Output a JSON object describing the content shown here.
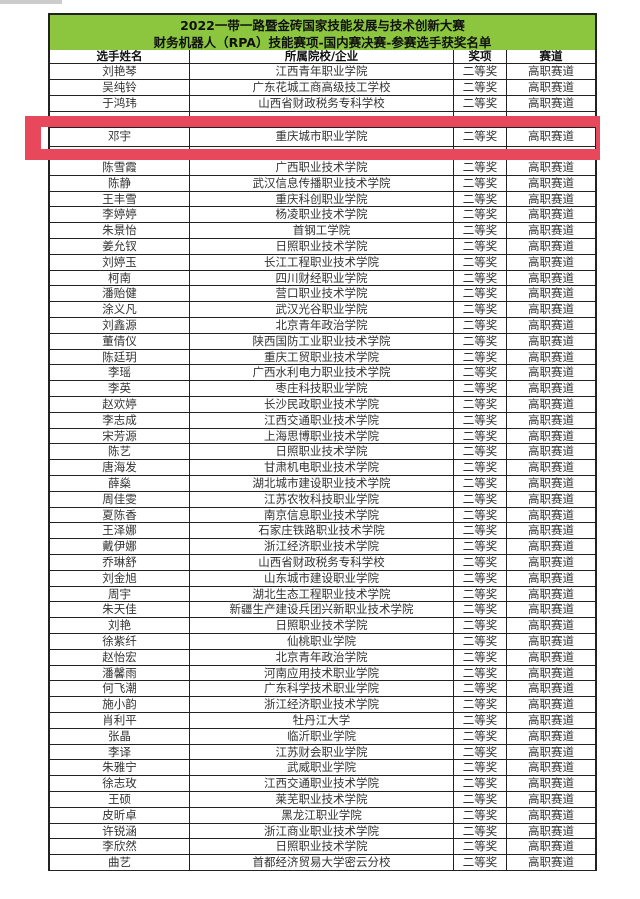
{
  "title": {
    "line1": "2022一带一路暨金砖国家技能发展与技术创新大赛",
    "line2": "财务机器人（RPA）技能赛项-国内赛决赛-参赛选手获奖名单"
  },
  "columns": [
    "选手姓名",
    "所属院校/企业",
    "奖项",
    "赛道"
  ],
  "colors": {
    "header_bg": "#8cc63f",
    "highlight": "#e8485b"
  },
  "top_rows": [
    [
      "刘艳琴",
      "江西青年职业学院",
      "二等奖",
      "高职赛道"
    ],
    [
      "吴纯铃",
      "广东花城工商高级技工学校",
      "二等奖",
      "高职赛道"
    ],
    [
      "于鸿玮",
      "山西省财政税务专科学校",
      "二等奖",
      "高职赛道"
    ]
  ],
  "highlighted_row": [
    "邓宇",
    "重庆城市职业学院",
    "二等奖",
    "高职赛道"
  ],
  "rows": [
    [
      "陈雪霞",
      "广西职业技术学院",
      "二等奖",
      "高职赛道"
    ],
    [
      "陈静",
      "武汉信息传播职业技术学院",
      "二等奖",
      "高职赛道"
    ],
    [
      "王丰雪",
      "重庆科创职业学院",
      "二等奖",
      "高职赛道"
    ],
    [
      "李婷婷",
      "杨凌职业技术学院",
      "二等奖",
      "高职赛道"
    ],
    [
      "朱景怡",
      "首钢工学院",
      "二等奖",
      "高职赛道"
    ],
    [
      "姜允钗",
      "日照职业技术学院",
      "二等奖",
      "高职赛道"
    ],
    [
      "刘婷玉",
      "长江工程职业技术学院",
      "二等奖",
      "高职赛道"
    ],
    [
      "柯南",
      "四川财经职业学院",
      "二等奖",
      "高职赛道"
    ],
    [
      "潘贻健",
      "营口职业技术学院",
      "二等奖",
      "高职赛道"
    ],
    [
      "涂义凡",
      "武汉光谷职业学院",
      "二等奖",
      "高职赛道"
    ],
    [
      "刘鑫源",
      "北京青年政治学院",
      "二等奖",
      "高职赛道"
    ],
    [
      "董倩仪",
      "陕西国防工业职业技术学院",
      "二等奖",
      "高职赛道"
    ],
    [
      "陈廷玥",
      "重庆工贸职业技术学院",
      "二等奖",
      "高职赛道"
    ],
    [
      "李瑶",
      "广西水利电力职业技术学院",
      "二等奖",
      "高职赛道"
    ],
    [
      "李英",
      "枣庄科技职业学院",
      "二等奖",
      "高职赛道"
    ],
    [
      "赵欢婷",
      "长沙民政职业技术学院",
      "二等奖",
      "高职赛道"
    ],
    [
      "李志成",
      "江西交通职业技术学院",
      "二等奖",
      "高职赛道"
    ],
    [
      "宋芳源",
      "上海思博职业技术学院",
      "二等奖",
      "高职赛道"
    ],
    [
      "陈艺",
      "日照职业技术学院",
      "二等奖",
      "高职赛道"
    ],
    [
      "唐海发",
      "甘肃机电职业技术学院",
      "二等奖",
      "高职赛道"
    ],
    [
      "薛燊",
      "湖北城市建设职业技术学院",
      "二等奖",
      "高职赛道"
    ],
    [
      "周佳雯",
      "江苏农牧科技职业学院",
      "二等奖",
      "高职赛道"
    ],
    [
      "夏陈香",
      "南京信息职业技术学院",
      "二等奖",
      "高职赛道"
    ],
    [
      "王泽娜",
      "石家庄铁路职业技术学院",
      "二等奖",
      "高职赛道"
    ],
    [
      "戴伊娜",
      "浙江经济职业技术学院",
      "二等奖",
      "高职赛道"
    ],
    [
      "乔琳舒",
      "山西省财政税务专科学校",
      "二等奖",
      "高职赛道"
    ],
    [
      "刘金旭",
      "山东城市建设职业学院",
      "二等奖",
      "高职赛道"
    ],
    [
      "周宇",
      "湖北生态工程职业技术学院",
      "二等奖",
      "高职赛道"
    ],
    [
      "朱天佳",
      "新疆生产建设兵团兴新职业技术学院",
      "二等奖",
      "高职赛道"
    ],
    [
      "刘艳",
      "日照职业技术学院",
      "二等奖",
      "高职赛道"
    ],
    [
      "徐紫纤",
      "仙桃职业学院",
      "二等奖",
      "高职赛道"
    ],
    [
      "赵怡宏",
      "北京青年政治学院",
      "二等奖",
      "高职赛道"
    ],
    [
      "潘馨雨",
      "河南应用技术职业学院",
      "二等奖",
      "高职赛道"
    ],
    [
      "何飞潮",
      "广东科学技术职业学院",
      "二等奖",
      "高职赛道"
    ],
    [
      "施小韵",
      "浙江经济职业技术学院",
      "二等奖",
      "高职赛道"
    ],
    [
      "肖利平",
      "牡丹江大学",
      "二等奖",
      "高职赛道"
    ],
    [
      "张晶",
      "临沂职业学院",
      "二等奖",
      "高职赛道"
    ],
    [
      "李译",
      "江苏财会职业学院",
      "二等奖",
      "高职赛道"
    ],
    [
      "朱雅宁",
      "武威职业学院",
      "二等奖",
      "高职赛道"
    ],
    [
      "徐志玫",
      "江西交通职业技术学院",
      "二等奖",
      "高职赛道"
    ],
    [
      "王硕",
      "莱芜职业技术学院",
      "二等奖",
      "高职赛道"
    ],
    [
      "皮昕卓",
      "黑龙江职业学院",
      "二等奖",
      "高职赛道"
    ],
    [
      "许锐涵",
      "浙江商业职业技术学院",
      "二等奖",
      "高职赛道"
    ],
    [
      "李欣然",
      "日照职业技术学院",
      "二等奖",
      "高职赛道"
    ],
    [
      "曲艺",
      "首都经济贸易大学密云分校",
      "二等奖",
      "高职赛道"
    ]
  ]
}
